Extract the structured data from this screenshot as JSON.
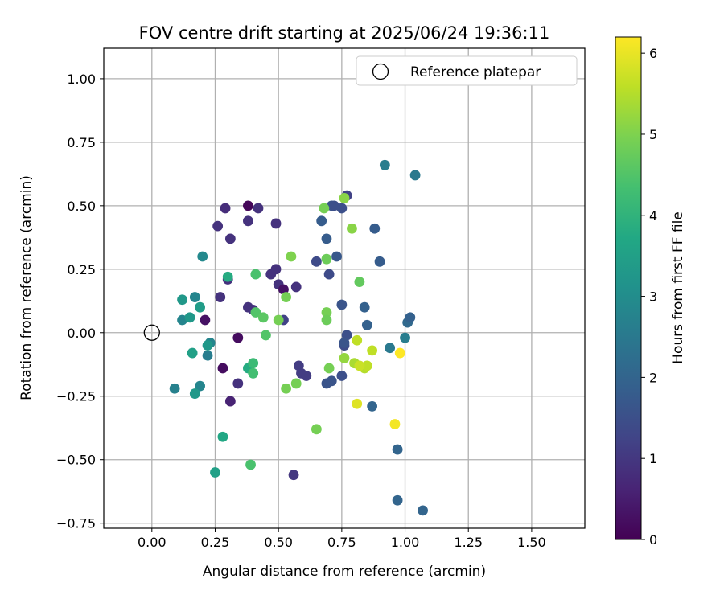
{
  "chart_data": {
    "type": "scatter",
    "title": "FOV centre drift starting at 2025/06/24 19:36:11",
    "xlabel": "Angular distance from reference (arcmin)",
    "ylabel": "Rotation from reference (arcmin)",
    "xlim": [
      -0.19,
      1.71
    ],
    "ylim": [
      -0.77,
      1.12
    ],
    "xticks": [
      0.0,
      0.25,
      0.5,
      0.75,
      1.0,
      1.25,
      1.5
    ],
    "xtick_labels": [
      "0.00",
      "0.25",
      "0.50",
      "0.75",
      "1.00",
      "1.25",
      "1.50"
    ],
    "yticks": [
      -0.75,
      -0.5,
      -0.25,
      0.0,
      0.25,
      0.5,
      0.75,
      1.0
    ],
    "ytick_labels": [
      "−0.75",
      "−0.50",
      "−0.25",
      "0.00",
      "0.25",
      "0.50",
      "0.75",
      "1.00"
    ],
    "grid": true,
    "legend": {
      "placement": "top-right",
      "entries": [
        {
          "label": "Reference platepar",
          "marker": "open-circle"
        }
      ]
    },
    "reference_point": {
      "x": 0.0,
      "y": 0.0
    },
    "colorbar": {
      "label": "Hours from first FF file",
      "range": [
        0,
        6.2
      ],
      "ticks": [
        0,
        1,
        2,
        3,
        4,
        5,
        6
      ],
      "colormap": "viridis"
    },
    "points": [
      [
        0.29,
        0.49,
        0.8
      ],
      [
        0.38,
        0.5,
        0.1
      ],
      [
        0.42,
        0.49,
        0.9
      ],
      [
        0.26,
        0.42,
        0.9
      ],
      [
        0.31,
        0.37,
        0.9
      ],
      [
        0.38,
        0.44,
        0.9
      ],
      [
        0.49,
        0.43,
        0.9
      ],
      [
        0.5,
        0.19,
        0.9
      ],
      [
        0.52,
        0.17,
        0.3
      ],
      [
        0.49,
        0.25,
        0.9
      ],
      [
        0.47,
        0.23,
        0.9
      ],
      [
        0.57,
        0.18,
        0.9
      ],
      [
        0.52,
        0.05,
        1.2
      ],
      [
        0.3,
        0.21,
        0.9
      ],
      [
        0.27,
        0.14,
        0.9
      ],
      [
        0.38,
        0.1,
        0.9
      ],
      [
        0.4,
        0.09,
        0.9
      ],
      [
        0.21,
        0.05,
        0.3
      ],
      [
        0.34,
        -0.02,
        0.2
      ],
      [
        0.28,
        -0.14,
        0.2
      ],
      [
        0.31,
        -0.27,
        0.6
      ],
      [
        0.34,
        -0.2,
        0.9
      ],
      [
        0.56,
        -0.56,
        1.0
      ],
      [
        0.58,
        -0.13,
        1.1
      ],
      [
        0.59,
        -0.16,
        1.1
      ],
      [
        0.61,
        -0.17,
        1.1
      ],
      [
        0.69,
        -0.2,
        1.6
      ],
      [
        0.71,
        -0.19,
        1.6
      ],
      [
        0.75,
        -0.17,
        1.5
      ],
      [
        0.76,
        -0.05,
        1.4
      ],
      [
        0.77,
        -0.01,
        1.5
      ],
      [
        0.76,
        -0.04,
        1.6
      ],
      [
        0.75,
        0.11,
        1.6
      ],
      [
        0.7,
        0.23,
        1.4
      ],
      [
        0.65,
        0.28,
        1.4
      ],
      [
        0.69,
        0.37,
        1.8
      ],
      [
        0.67,
        0.44,
        1.8
      ],
      [
        0.71,
        0.5,
        1.6
      ],
      [
        0.72,
        0.5,
        1.5
      ],
      [
        0.75,
        0.49,
        1.5
      ],
      [
        0.77,
        0.54,
        1.2
      ],
      [
        0.73,
        0.3,
        1.7
      ],
      [
        0.88,
        0.41,
        1.8
      ],
      [
        0.9,
        0.28,
        1.8
      ],
      [
        0.84,
        0.1,
        1.9
      ],
      [
        0.85,
        0.03,
        1.9
      ],
      [
        0.87,
        -0.29,
        2.0
      ],
      [
        0.97,
        -0.46,
        2.0
      ],
      [
        0.97,
        -0.66,
        2.0
      ],
      [
        1.07,
        -0.7,
        2.0
      ],
      [
        0.94,
        -0.06,
        2.5
      ],
      [
        1.0,
        -0.02,
        2.6
      ],
      [
        1.01,
        0.04,
        2.1
      ],
      [
        1.02,
        0.06,
        1.9
      ],
      [
        0.92,
        0.66,
        2.6
      ],
      [
        1.04,
        0.62,
        2.5
      ],
      [
        0.09,
        -0.22,
        2.7
      ],
      [
        0.12,
        0.05,
        2.8
      ],
      [
        0.17,
        0.14,
        2.8
      ],
      [
        0.2,
        0.3,
        2.9
      ],
      [
        0.22,
        -0.09,
        2.6
      ],
      [
        0.23,
        -0.04,
        2.8
      ],
      [
        0.19,
        -0.21,
        2.8
      ],
      [
        0.12,
        0.13,
        3.3
      ],
      [
        0.15,
        0.06,
        3.3
      ],
      [
        0.16,
        -0.08,
        3.5
      ],
      [
        0.17,
        -0.24,
        3.3
      ],
      [
        0.19,
        0.1,
        3.4
      ],
      [
        0.22,
        -0.05,
        3.3
      ],
      [
        0.25,
        -0.55,
        3.5
      ],
      [
        0.28,
        -0.41,
        3.7
      ],
      [
        0.3,
        0.22,
        3.8
      ],
      [
        0.38,
        -0.14,
        3.8
      ],
      [
        0.4,
        -0.12,
        4.2
      ],
      [
        0.4,
        -0.16,
        4.3
      ],
      [
        0.39,
        -0.52,
        4.4
      ],
      [
        0.41,
        0.23,
        4.4
      ],
      [
        0.41,
        0.08,
        4.5
      ],
      [
        0.44,
        0.06,
        4.6
      ],
      [
        0.45,
        -0.01,
        4.5
      ],
      [
        0.5,
        0.05,
        4.9
      ],
      [
        0.53,
        0.14,
        4.9
      ],
      [
        0.55,
        0.3,
        5.0
      ],
      [
        0.53,
        -0.22,
        4.9
      ],
      [
        0.57,
        -0.2,
        4.9
      ],
      [
        0.65,
        -0.38,
        4.9
      ],
      [
        0.68,
        0.49,
        4.9
      ],
      [
        0.69,
        0.29,
        4.8
      ],
      [
        0.69,
        0.08,
        4.9
      ],
      [
        0.69,
        0.05,
        4.8
      ],
      [
        0.7,
        -0.14,
        4.9
      ],
      [
        0.76,
        0.53,
        5.1
      ],
      [
        0.79,
        0.41,
        5.1
      ],
      [
        0.82,
        0.2,
        4.7
      ],
      [
        0.76,
        -0.1,
        5.2
      ],
      [
        0.8,
        -0.12,
        5.4
      ],
      [
        0.84,
        -0.14,
        5.5
      ],
      [
        0.85,
        -0.13,
        5.6
      ],
      [
        0.87,
        -0.07,
        5.6
      ],
      [
        0.81,
        -0.03,
        5.6
      ],
      [
        0.82,
        -0.13,
        5.7
      ],
      [
        0.81,
        -0.28,
        5.9
      ],
      [
        0.96,
        -0.36,
        6.1
      ],
      [
        0.98,
        -0.08,
        6.2
      ]
    ]
  }
}
